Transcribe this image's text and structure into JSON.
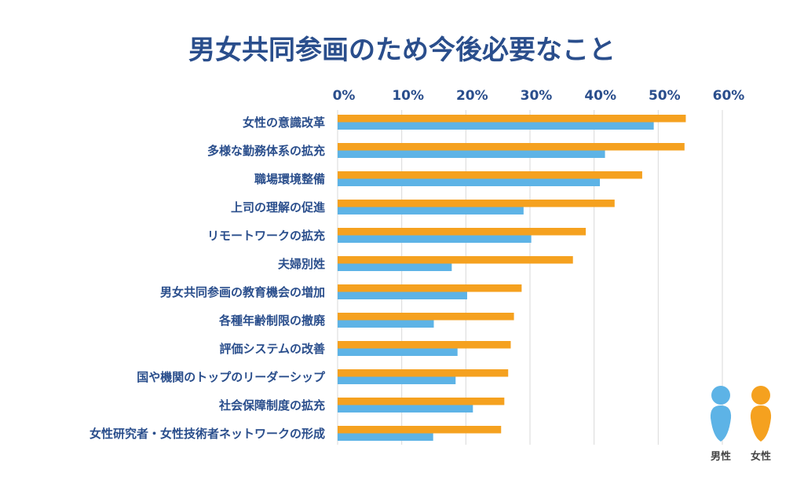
{
  "chart_data": {
    "type": "bar",
    "orientation": "horizontal",
    "title": "男女共同参画のため今後必要なこと",
    "xlabel": "",
    "ylabel": "",
    "xlim": [
      0,
      60
    ],
    "xticks": [
      "0%",
      "10%",
      "20%",
      "30%",
      "40%",
      "50%",
      "60%"
    ],
    "grid": true,
    "legend_position": "bottom-right",
    "categories": [
      "女性の意識改革",
      "多様な勤務体系の拡充",
      "職場環境整備",
      "上司の理解の促進",
      "リモートワークの拡充",
      "夫婦別姓",
      "男女共同参画の教育機会の増加",
      "各種年齢制限の撤廃",
      "評価システムの改善",
      "国や機関のトップのリーダーシップ",
      "社会保障制度の拡充",
      "女性研究者・女性技術者ネットワークの形成"
    ],
    "series": [
      {
        "name": "女性",
        "color": "#f5a11f",
        "values": [
          54.3,
          54.1,
          47.5,
          43.2,
          38.7,
          36.7,
          28.7,
          27.5,
          27.0,
          26.6,
          26.0,
          25.5
        ]
      },
      {
        "name": "男性",
        "color": "#5db3e6",
        "values": [
          49.3,
          41.7,
          40.9,
          29.0,
          30.2,
          17.8,
          20.2,
          15.0,
          18.7,
          18.4,
          21.1,
          14.9
        ]
      }
    ]
  }
}
